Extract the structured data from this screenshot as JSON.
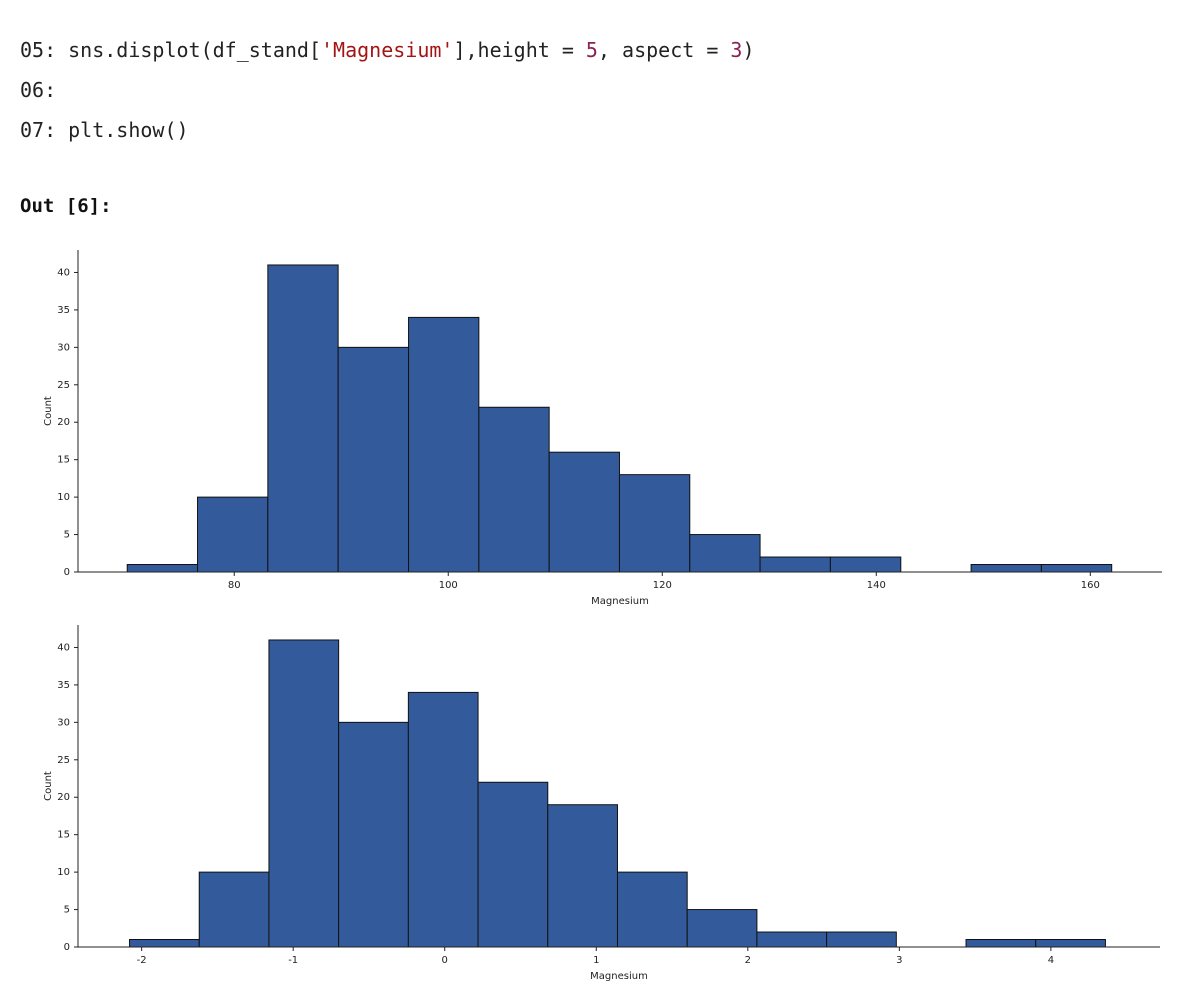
{
  "code": [
    {
      "number": "05:",
      "tokens": [
        "sns.displot(df_stand[",
        "'Magnesium'",
        "],height = ",
        "5",
        ", aspect = ",
        "3",
        ")"
      ]
    },
    {
      "number": "06:",
      "tokens": []
    },
    {
      "number": "07:",
      "tokens": [
        "plt.show()"
      ]
    }
  ],
  "output_label": "Out [6]:",
  "chart_data": [
    {
      "type": "histogram",
      "xlabel": "Magnesium",
      "ylabel": "Count",
      "color": "#335b9c",
      "edgecolor": "#111111",
      "bins": [
        70,
        76.57,
        83.14,
        89.71,
        96.29,
        102.86,
        109.43,
        116,
        122.57,
        129.14,
        135.71,
        142.29,
        148.86,
        155.43,
        162
      ],
      "values": [
        1,
        10,
        41,
        30,
        34,
        22,
        16,
        13,
        5,
        2,
        2,
        0,
        1,
        1
      ],
      "xlim": [
        65.4,
        166.7
      ],
      "ylim": [
        0,
        43
      ],
      "xticks": [
        80,
        100,
        120,
        140,
        160
      ],
      "yticks": [
        0,
        5,
        10,
        15,
        20,
        25,
        30,
        35,
        40
      ]
    },
    {
      "type": "histogram",
      "xlabel": "Magnesium",
      "ylabel": "Count",
      "color": "#335b9c",
      "edgecolor": "#111111",
      "bins": [
        -2.08,
        -1.62,
        -1.16,
        -0.7,
        -0.24,
        0.22,
        0.68,
        1.14,
        1.6,
        2.06,
        2.52,
        2.98,
        3.44,
        3.9,
        4.36
      ],
      "values": [
        1,
        10,
        41,
        30,
        34,
        22,
        19,
        10,
        5,
        2,
        2,
        0,
        1,
        1
      ],
      "xlim": [
        -2.42,
        4.72
      ],
      "ylim": [
        0,
        43
      ],
      "xticks": [
        -2,
        -1,
        0,
        1,
        2,
        3,
        4
      ],
      "yticks": [
        0,
        5,
        10,
        15,
        20,
        25,
        30,
        35,
        40
      ]
    }
  ]
}
